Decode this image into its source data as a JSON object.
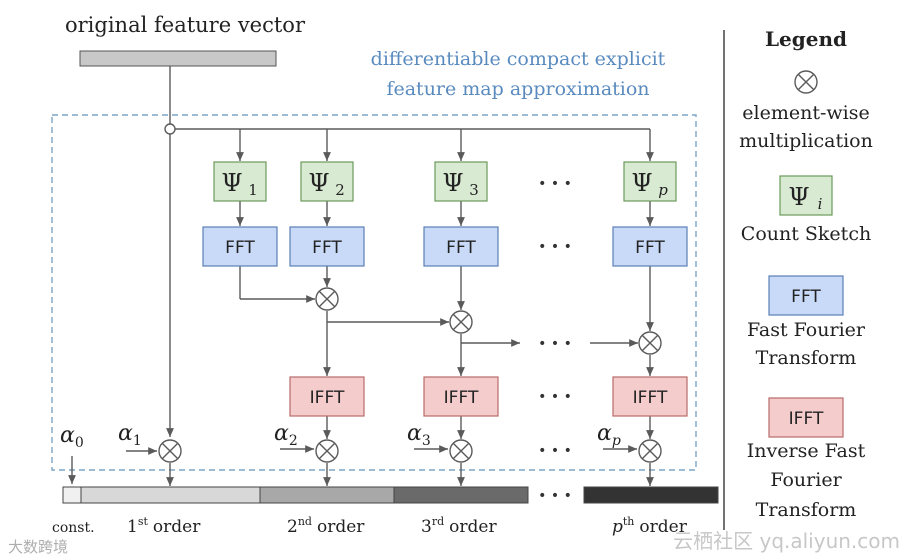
{
  "colors": {
    "line": "#5a5a5a",
    "psi_fill": "#d9ead3",
    "psi_stroke": "#6b9a5b",
    "fft_fill": "#c9daf8",
    "fft_stroke": "#5b7fb5",
    "ifft_fill": "#f4cccc",
    "ifft_stroke": "#b86a6a",
    "dashed": "#7ca6c9",
    "title_blue": "#5a8bbf",
    "bar_const": "#f0f0f0",
    "bar_1": "#d8d8d8",
    "bar_2": "#a8a8a8",
    "bar_3": "#6a6a6a",
    "bar_p": "#333333"
  },
  "input": {
    "label": "original feature vector"
  },
  "region": {
    "title_line1": "differentiable compact explicit",
    "title_line2": "feature map approximation"
  },
  "dots": "• • •",
  "sketches": {
    "sym": "Ψ",
    "subs": [
      "1",
      "2",
      "3",
      "p"
    ]
  },
  "fft_label": "FFT",
  "ifft_label": "IFFT",
  "alphas": {
    "sym": "α",
    "subs": [
      "0",
      "1",
      "2",
      "3",
      "p"
    ]
  },
  "orders": {
    "const": "const.",
    "o1": {
      "n": "1",
      "sup": "st",
      "word": "order"
    },
    "o2": {
      "n": "2",
      "sup": "nd",
      "word": "order"
    },
    "o3": {
      "n": "3",
      "sup": "rd",
      "word": "order"
    },
    "op": {
      "n": "p",
      "sup": "th",
      "word": "order"
    }
  },
  "legend": {
    "title": "Legend",
    "mult_line1": "element-wise",
    "mult_line2": "multiplication",
    "psi_sub": "i",
    "psi_caption": "Count Sketch",
    "fft_line1": "Fast Fourier",
    "fft_line2": "Transform",
    "ifft_line1": "Inverse Fast",
    "ifft_line2": "Fourier",
    "ifft_line3": "Transform"
  },
  "watermarks": {
    "left": "大数跨境",
    "right": "云栖社区 yq.aliyun.com"
  }
}
